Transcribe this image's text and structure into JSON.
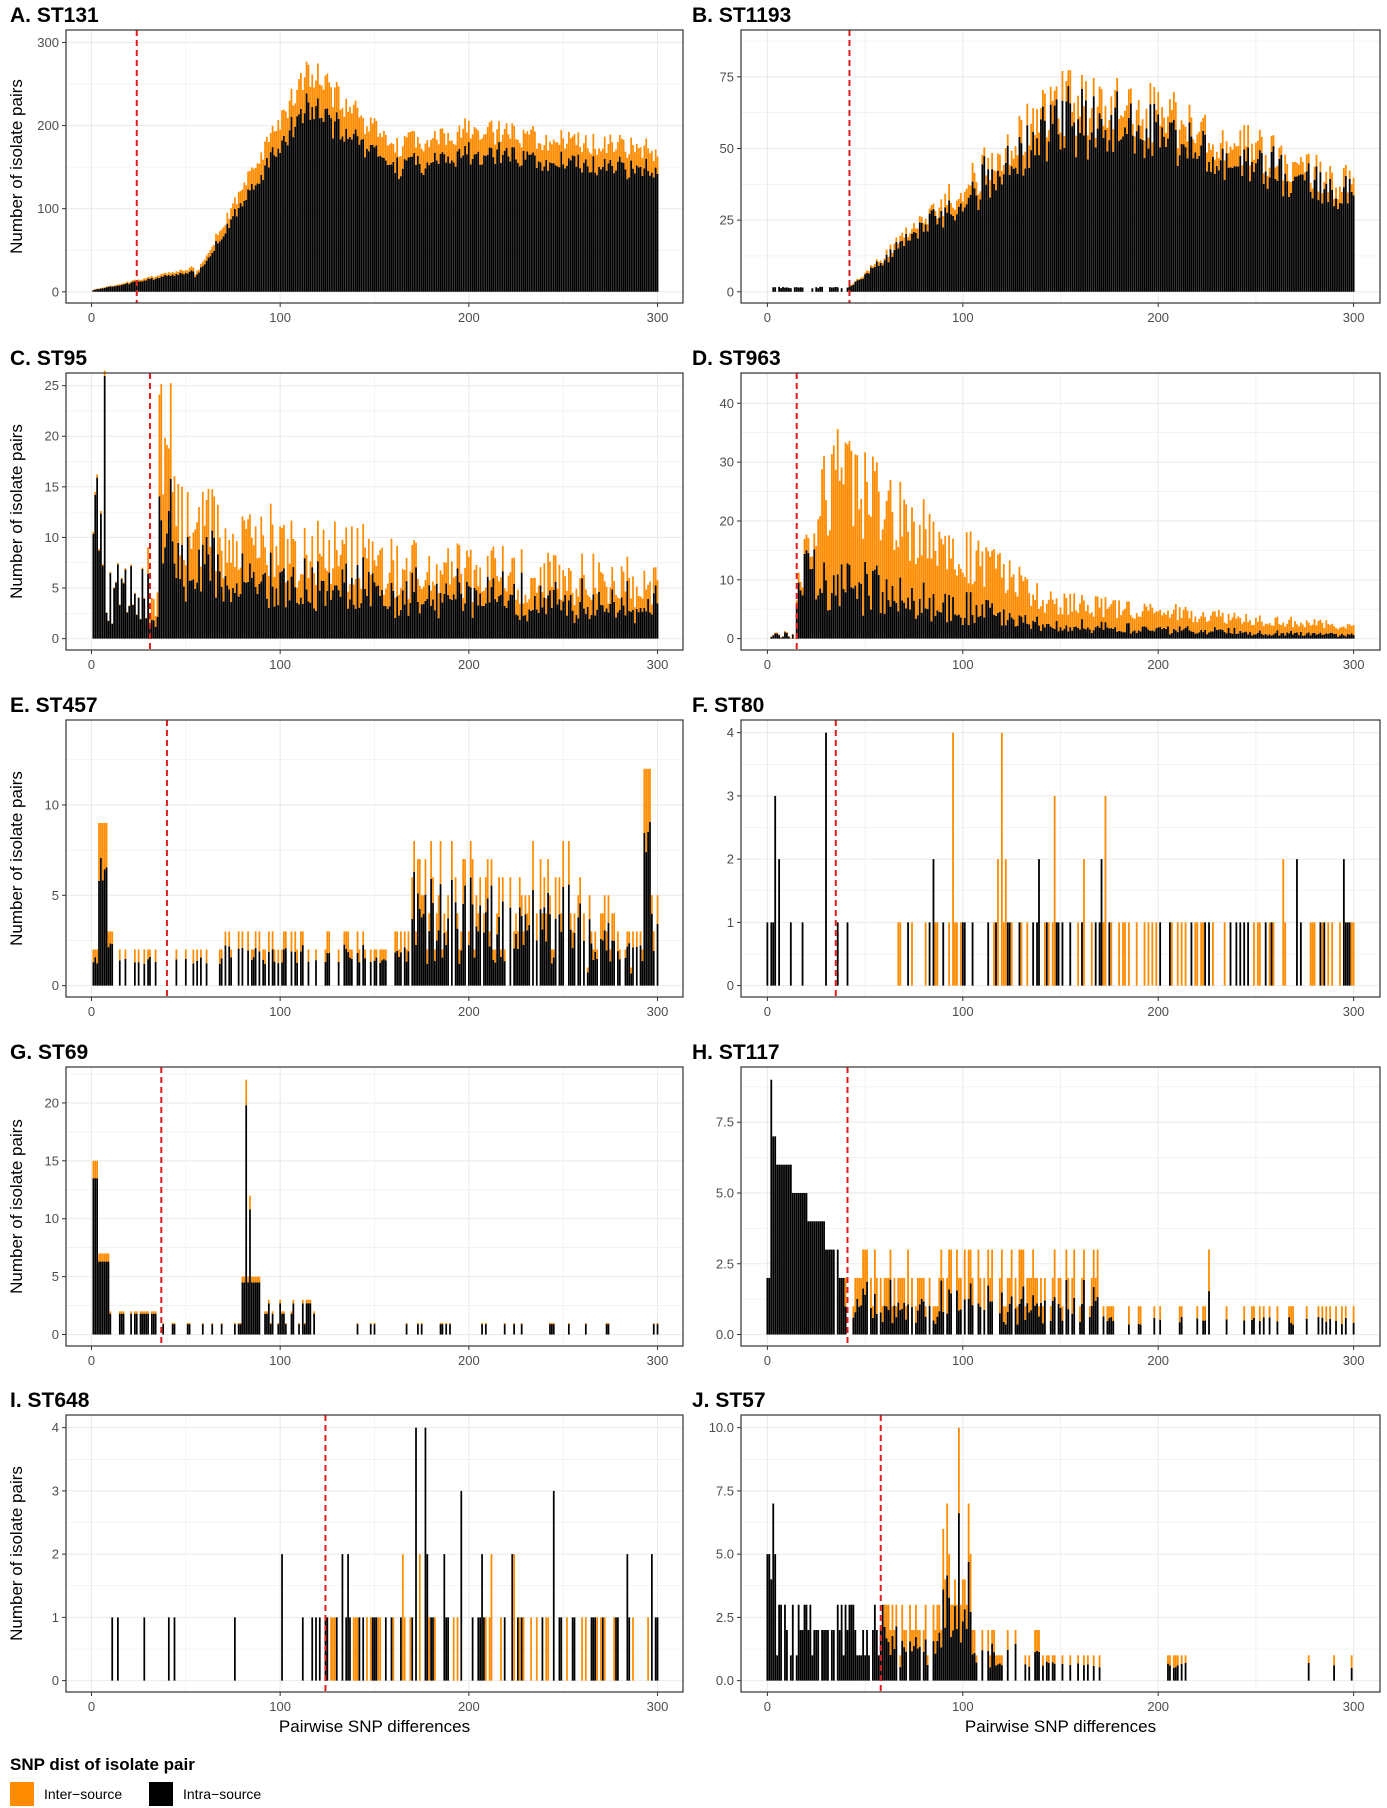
{
  "chart_data": [
    {
      "type": "bar",
      "title": "A. ST131",
      "ylabel": "Number of isolate pairs",
      "xlabel": "",
      "xlim": [
        0,
        300
      ],
      "ylim": [
        0,
        300
      ],
      "yticks": [
        0,
        100,
        200,
        300
      ],
      "xticks": [
        0,
        100,
        200,
        300
      ],
      "threshold": 24,
      "shape": {
        "kind": "st131"
      }
    },
    {
      "type": "bar",
      "title": "B. ST1193",
      "ylabel": "",
      "xlabel": "",
      "xlim": [
        0,
        300
      ],
      "ylim": [
        0,
        87
      ],
      "yticks": [
        0,
        25,
        50,
        75
      ],
      "xticks": [
        0,
        100,
        200,
        300
      ],
      "threshold": 42,
      "shape": {
        "kind": "st1193"
      }
    },
    {
      "type": "bar",
      "title": "C. ST95",
      "ylabel": "Number of isolate pairs",
      "xlabel": "",
      "xlim": [
        0,
        300
      ],
      "ylim": [
        0,
        25
      ],
      "yticks": [
        0,
        5,
        10,
        15,
        20,
        25
      ],
      "xticks": [
        0,
        100,
        200,
        300
      ],
      "threshold": 31,
      "shape": {
        "kind": "st95"
      }
    },
    {
      "type": "bar",
      "title": "D. ST963",
      "ylabel": "",
      "xlabel": "",
      "xlim": [
        0,
        300
      ],
      "ylim": [
        0,
        43
      ],
      "yticks": [
        0,
        10,
        20,
        30,
        40
      ],
      "xticks": [
        0,
        100,
        200,
        300
      ],
      "threshold": 15,
      "shape": {
        "kind": "st963"
      }
    },
    {
      "type": "bar",
      "title": "E. ST457",
      "ylabel": "Number of isolate pairs",
      "xlabel": "",
      "xlim": [
        0,
        300
      ],
      "ylim": [
        0,
        14
      ],
      "yticks": [
        0,
        5,
        10
      ],
      "xticks": [
        0,
        100,
        200,
        300
      ],
      "threshold": 40,
      "shape": {
        "kind": "st457"
      }
    },
    {
      "type": "bar",
      "title": "F. ST80",
      "ylabel": "",
      "xlabel": "",
      "xlim": [
        0,
        300
      ],
      "ylim": [
        0,
        4
      ],
      "yticks": [
        0,
        1,
        2,
        3,
        4
      ],
      "xticks": [
        0,
        100,
        200,
        300
      ],
      "threshold": 35,
      "shape": {
        "kind": "st80"
      }
    },
    {
      "type": "bar",
      "title": "G. ST69",
      "ylabel": "Number of isolate pairs",
      "xlabel": "",
      "xlim": [
        0,
        300
      ],
      "ylim": [
        0,
        22
      ],
      "yticks": [
        0,
        5,
        10,
        15,
        20
      ],
      "xticks": [
        0,
        100,
        200,
        300
      ],
      "threshold": 37,
      "shape": {
        "kind": "st69"
      }
    },
    {
      "type": "bar",
      "title": "H. ST117",
      "ylabel": "",
      "xlabel": "",
      "xlim": [
        0,
        300
      ],
      "ylim": [
        0,
        9
      ],
      "yticks": [
        "0.0",
        "2.5",
        "5.0",
        "7.5"
      ],
      "ytickvals": [
        0,
        2.5,
        5,
        7.5
      ],
      "xticks": [
        0,
        100,
        200,
        300
      ],
      "threshold": 41,
      "shape": {
        "kind": "st117"
      }
    },
    {
      "type": "bar",
      "title": "I. ST648",
      "ylabel": "Number of isolate pairs",
      "xlabel": "Pairwise SNP differences",
      "xlim": [
        0,
        300
      ],
      "ylim": [
        0,
        4
      ],
      "yticks": [
        0,
        1,
        2,
        3,
        4
      ],
      "xticks": [
        0,
        100,
        200,
        300
      ],
      "threshold": 124,
      "shape": {
        "kind": "st648"
      }
    },
    {
      "type": "bar",
      "title": "J. ST57",
      "ylabel": "",
      "xlabel": "Pairwise SNP differences",
      "xlim": [
        0,
        300
      ],
      "ylim": [
        0,
        10
      ],
      "yticks": [
        "0.0",
        "2.5",
        "5.0",
        "7.5",
        "10.0"
      ],
      "ytickvals": [
        0,
        2.5,
        5,
        7.5,
        10
      ],
      "xticks": [
        0,
        100,
        200,
        300
      ],
      "threshold": 58,
      "shape": {
        "kind": "st57"
      }
    }
  ],
  "legend": {
    "title": "SNP dist of isolate pair",
    "items": [
      {
        "name": "Inter−source",
        "color": "#FF8C00"
      },
      {
        "name": "Intra−source",
        "color": "#000000"
      }
    ]
  },
  "colors": {
    "inter": "#FF8C00",
    "intra": "#000000",
    "threshold": "#E31A1C",
    "grid": "#EBEBEB",
    "border": "#333333"
  }
}
